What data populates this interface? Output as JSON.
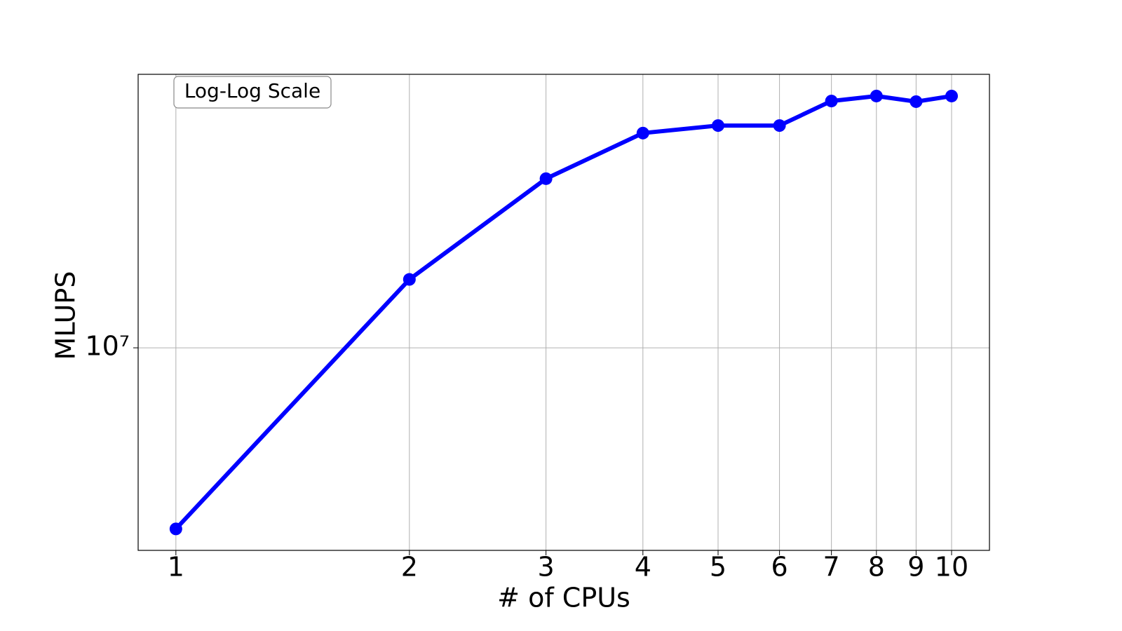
{
  "chart_data": {
    "type": "line",
    "xlabel": "# of CPUs",
    "ylabel": "MLUPS",
    "annotation": "Log-Log Scale",
    "x": [
      1,
      2,
      3,
      4,
      5,
      6,
      7,
      8,
      9,
      10
    ],
    "series": [
      {
        "color": "#0000ff",
        "values": [
          3030000,
          15700000,
          30500000,
          41200000,
          43300000,
          43300000,
          50900000,
          52600000,
          50700000,
          52600000
        ]
      }
    ],
    "xlim": [
      0.894,
      11.19
    ],
    "ylim": [
      2630000,
      60700000
    ],
    "xticks": [
      1,
      2,
      3,
      4,
      5,
      6,
      7,
      8,
      9,
      10
    ],
    "yticks": [
      {
        "value": 10000000,
        "label": "10⁷"
      }
    ],
    "xscale": "log",
    "yscale": "log",
    "grid": true
  }
}
